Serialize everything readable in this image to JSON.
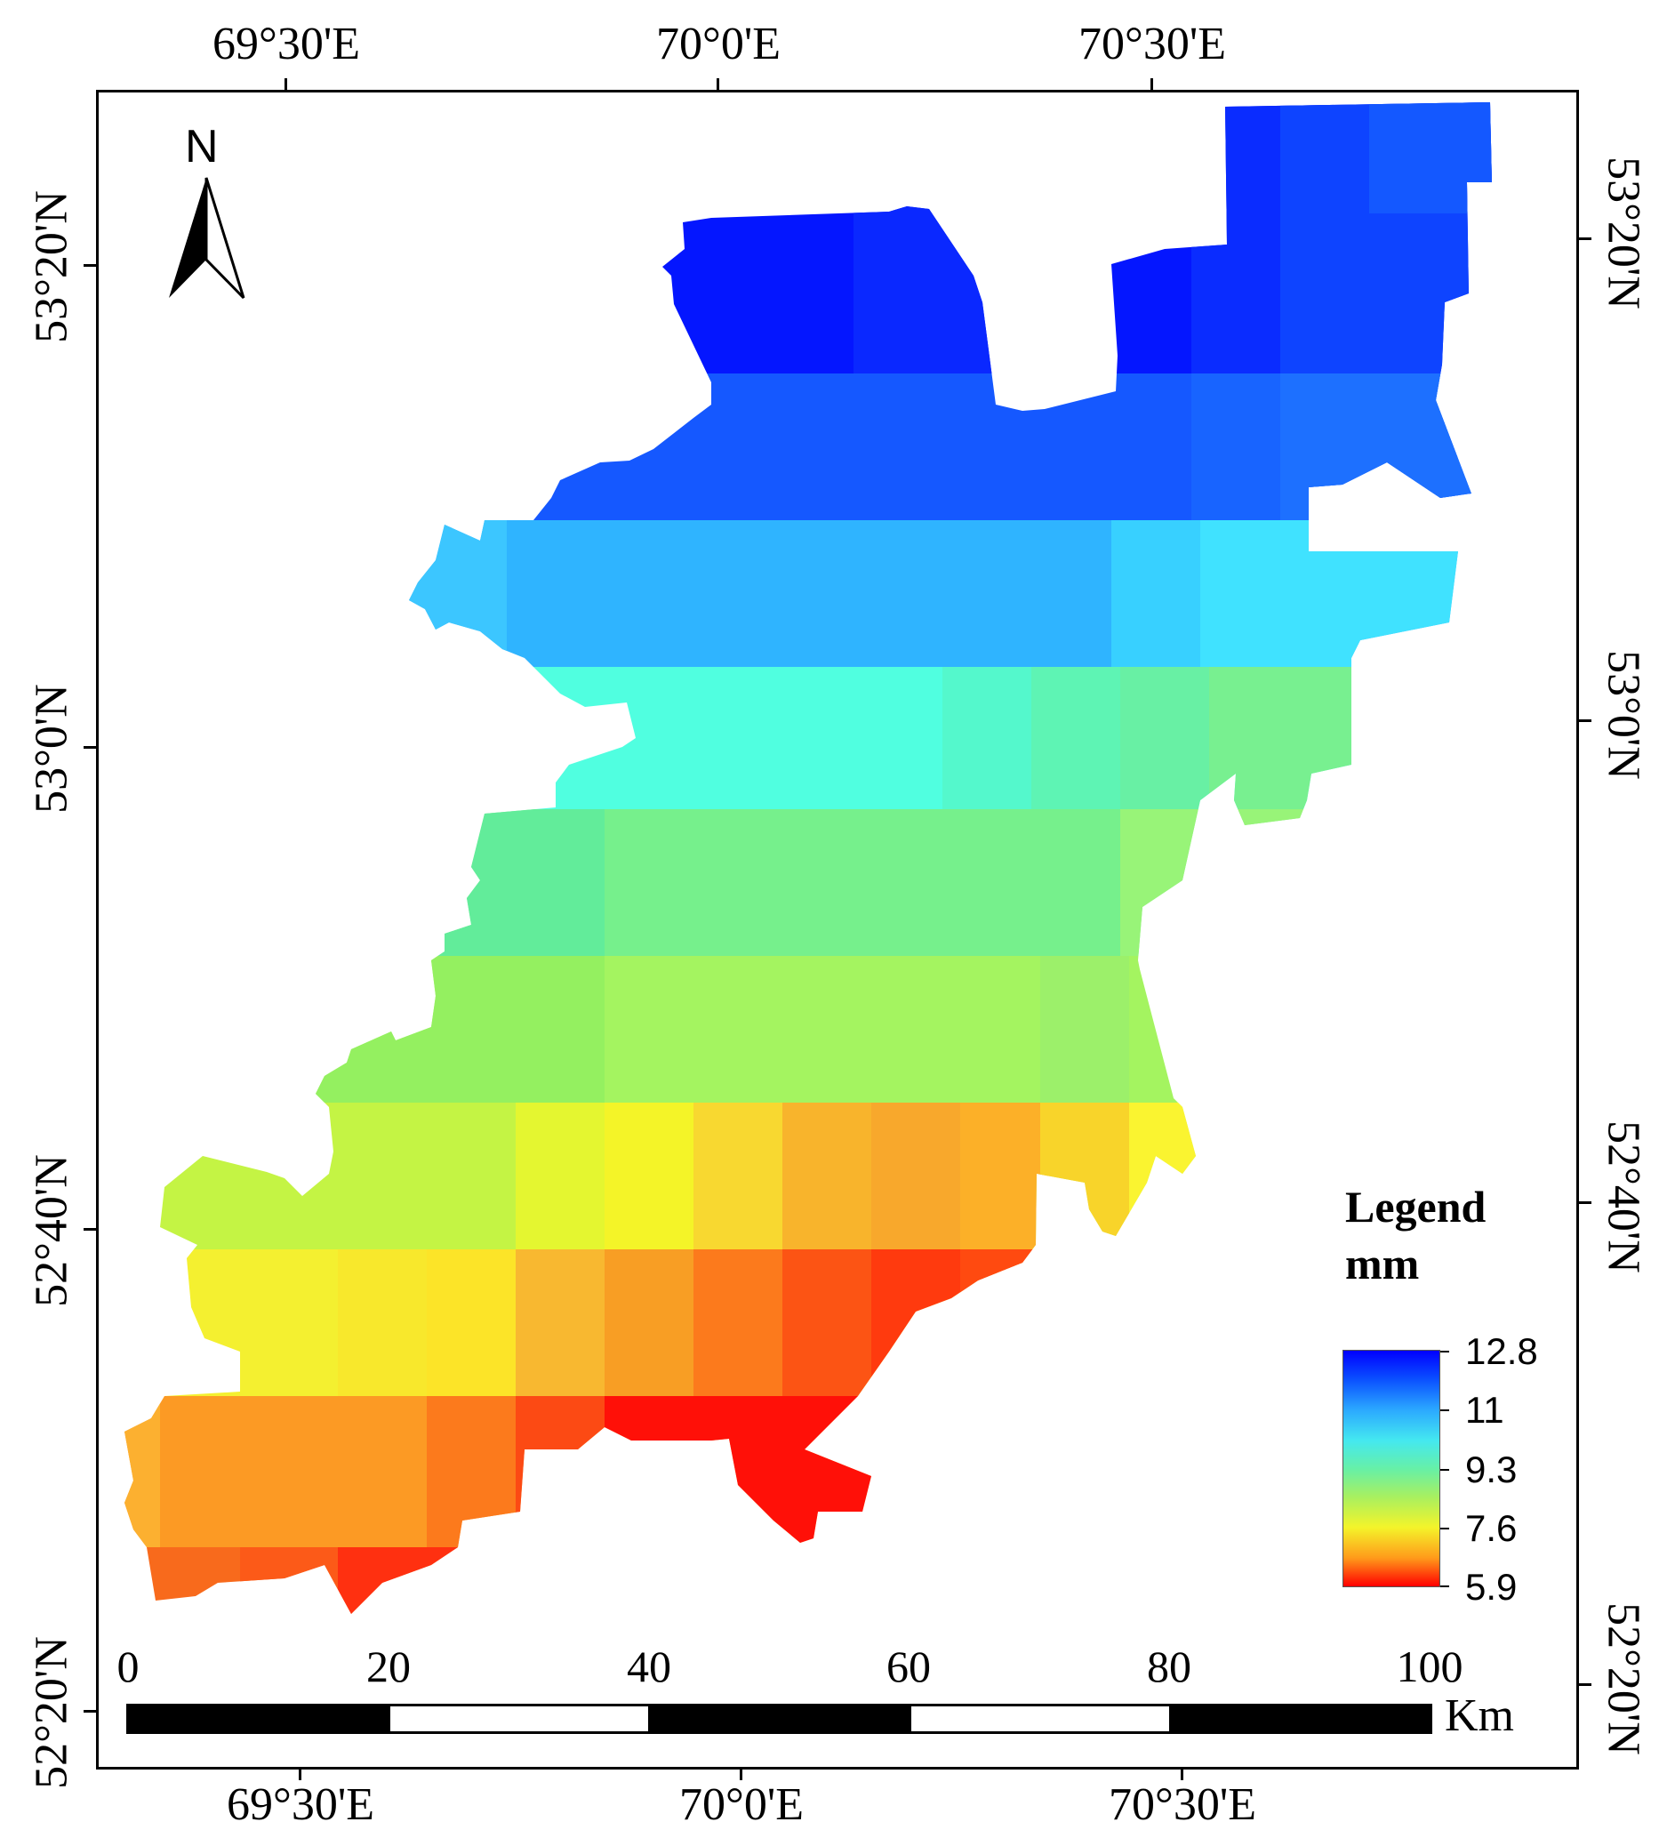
{
  "map": {
    "legend_title": "Legend",
    "legend_unit": "mm",
    "legend_values": [
      "12.8",
      "11",
      "9.3",
      "7.6",
      "5.9"
    ],
    "color_ramp": [
      "#0000ff",
      "#2ba8ff",
      "#44e8f0",
      "#a8f060",
      "#f4f42a",
      "#ff9a1a",
      "#ff0000"
    ],
    "north_label": "N",
    "lon_labels_top": [
      "69°30'E",
      "70°0'E",
      "70°30'E"
    ],
    "lon_labels_bottom": [
      "69°30'E",
      "70°0'E",
      "70°30'E"
    ],
    "lat_labels_left": [
      "53°20'N",
      "53°0'N",
      "52°40'N",
      "52°20'N"
    ],
    "lat_labels_right": [
      "53°20'N",
      "53°0'N",
      "52°40'N",
      "52°20'N"
    ],
    "scale_numbers": [
      "0",
      "20",
      "40",
      "60",
      "80",
      "100"
    ],
    "scale_unit": "Km"
  }
}
